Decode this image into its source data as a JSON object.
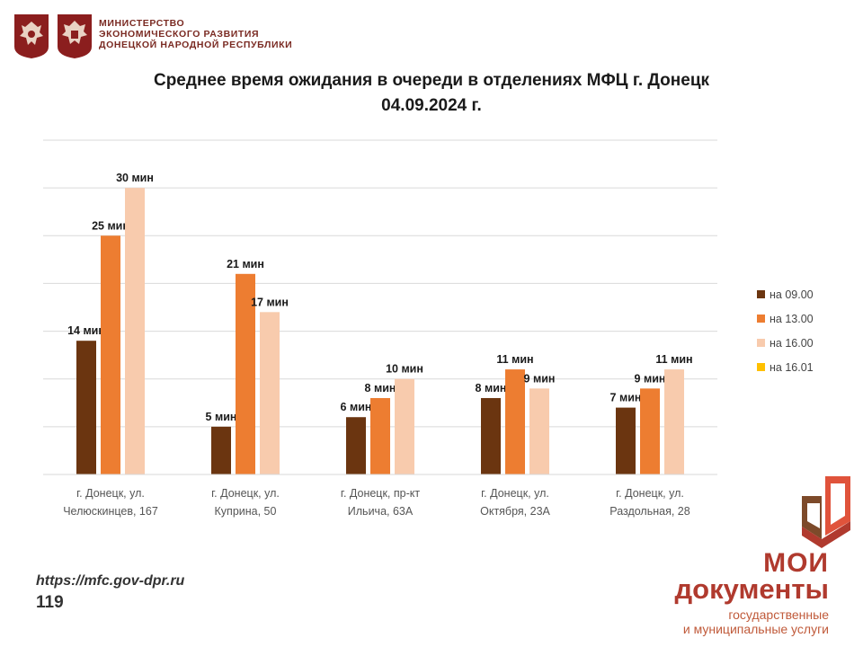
{
  "header": {
    "ministry_lines": [
      "МИНИСТЕРСТВО",
      "ЭКОНОМИЧЕСКОГО РАЗВИТИЯ",
      "ДОНЕЦКОЙ НАРОДНОЙ РЕСПУБЛИКИ"
    ],
    "emblem_color": "#8b1e1e"
  },
  "chart_data": {
    "type": "bar",
    "title": "Среднее время ожидания в очереди в отделениях МФЦ г. Донецк",
    "subtitle": "04.09.2024 г.",
    "categories": [
      [
        "г. Донецк, ул.",
        "Челюскинцев, 167"
      ],
      [
        "г. Донецк, ул.",
        "Куприна, 50"
      ],
      [
        "г. Донецк, пр-кт",
        "Ильича, 63А"
      ],
      [
        "г. Донецк, ул.",
        "Октября, 23А"
      ],
      [
        "г. Донецк, ул.",
        "Раздольная, 28"
      ]
    ],
    "series": [
      {
        "name": "на 09.00",
        "color": "#6b3510",
        "values": [
          14,
          5,
          6,
          8,
          7
        ],
        "labels": [
          "14 мин",
          "5 мин",
          "6 мин",
          "8 мин",
          "7 мин"
        ]
      },
      {
        "name": "на 13.00",
        "color": "#ed7d31",
        "values": [
          25,
          21,
          8,
          11,
          9
        ],
        "labels": [
          "25 мин",
          "21 мин",
          "8 мин",
          "11 мин",
          "9 мин"
        ]
      },
      {
        "name": "на 16.00",
        "color": "#f8cbad",
        "values": [
          30,
          17,
          10,
          9,
          11
        ],
        "labels": [
          "30 мин",
          "17 мин",
          "10 мин",
          "9 мин",
          "11 мин"
        ]
      },
      {
        "name": "на 16.01",
        "color": "#ffc000",
        "values": [
          null,
          null,
          null,
          null,
          null
        ],
        "labels": []
      }
    ],
    "ylim": [
      0,
      35
    ],
    "grid": true,
    "legend": "right"
  },
  "footer": {
    "url": "https://mfc.gov-dpr.ru",
    "page_number": "119"
  },
  "brand": {
    "line1": "МОИ",
    "line2": "документы",
    "line3": "государственные",
    "line4": "и муниципальные услуги",
    "color": "#b03a2e"
  }
}
